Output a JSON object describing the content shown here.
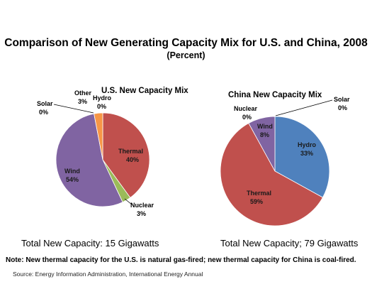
{
  "title": "Comparison of New Generating Capacity Mix for U.S. and China, 2008",
  "subtitle": "(Percent)",
  "colors": {
    "hydro": "#4F81BD",
    "thermal": "#C0504D",
    "nuclear": "#9BBB59",
    "wind": "#8064A2",
    "other": "#4BACC6",
    "solar": "#F79646"
  },
  "chart_data": [
    {
      "type": "pie",
      "title": "U.S. New Capacity Mix",
      "slices": [
        {
          "name": "Hydro",
          "value": 0,
          "label": "0%",
          "color": "#4F81BD"
        },
        {
          "name": "Thermal",
          "value": 40,
          "label": "40%",
          "color": "#C0504D"
        },
        {
          "name": "Nuclear",
          "value": 3,
          "label": "3%",
          "color": "#9BBB59"
        },
        {
          "name": "Wind",
          "value": 54,
          "label": "54%",
          "color": "#8064A2"
        },
        {
          "name": "Solar",
          "value": 0,
          "label": "0%",
          "color": "#4BACC6"
        },
        {
          "name": "Other",
          "value": 3,
          "label": "3%",
          "color": "#F79646"
        }
      ],
      "total_label": "Total New Capacity: 15 Gigawatts"
    },
    {
      "type": "pie",
      "title": "China New Capacity Mix",
      "slices": [
        {
          "name": "Hydro",
          "value": 33,
          "label": "33%",
          "color": "#4F81BD"
        },
        {
          "name": "Thermal",
          "value": 59,
          "label": "59%",
          "color": "#C0504D"
        },
        {
          "name": "Nuclear",
          "value": 0,
          "label": "0%",
          "color": "#9BBB59"
        },
        {
          "name": "Wind",
          "value": 8,
          "label": "8%",
          "color": "#8064A2"
        },
        {
          "name": "Solar",
          "value": 0,
          "label": "0%",
          "color": "#4BACC6"
        }
      ],
      "total_label": "Total New Capacity; 79 Gigawatts"
    }
  ],
  "note": "Note: New thermal capacity for the U.S. is natural gas-fired; new thermal capacity for China is coal-fired.",
  "source": "Source: Energy Information Administration, International Energy Annual"
}
